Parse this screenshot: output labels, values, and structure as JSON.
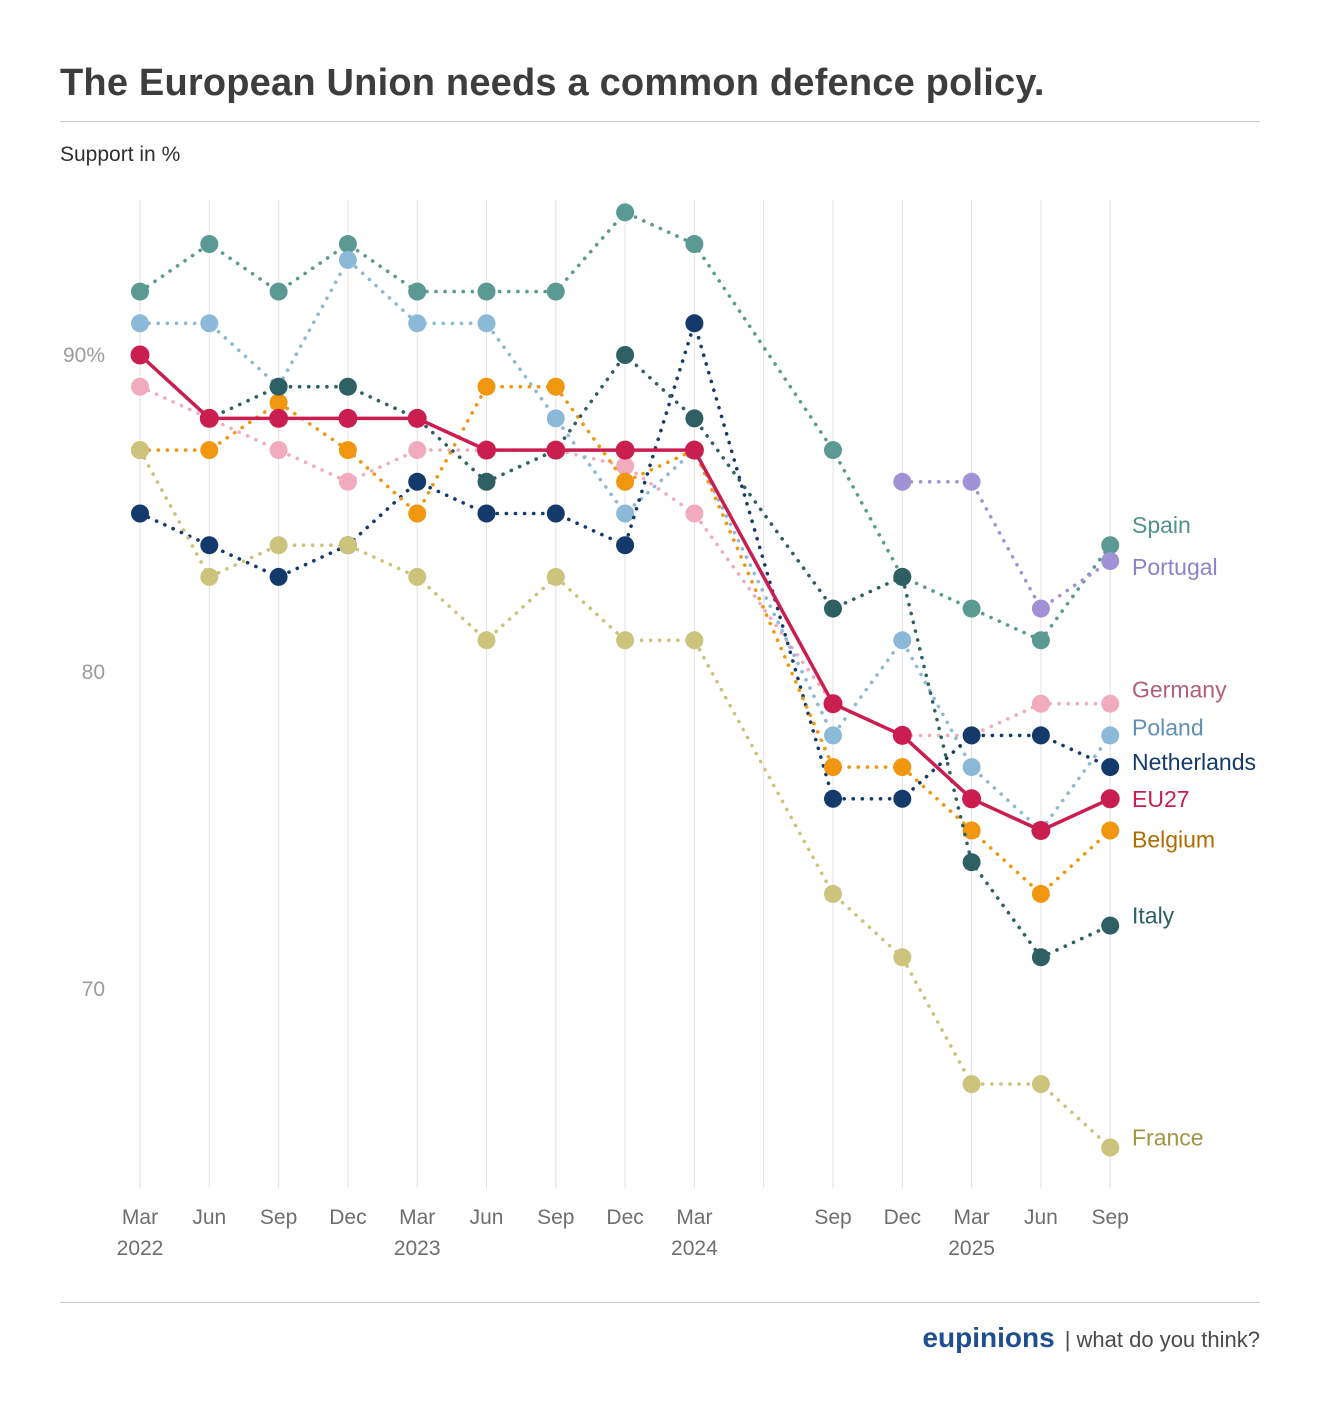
{
  "footer": {
    "brand": "eupinions",
    "tagline": "| what do you think?"
  },
  "chart_data": {
    "type": "line",
    "title": "The European Union needs a common defence policy.",
    "ylabel": "Support in %",
    "xlabel": "",
    "legend_position": "right",
    "grid": "vertical-only",
    "ylim": [
      63,
      96
    ],
    "y_ticks": [
      {
        "value": 90,
        "label": "90%"
      },
      {
        "value": 80,
        "label": "80"
      },
      {
        "value": 70,
        "label": "70"
      }
    ],
    "x_labels": [
      "Mar",
      "Jun",
      "Sep",
      "Dec",
      "Mar",
      "Jun",
      "Sep",
      "Dec",
      "Mar",
      "Sep",
      "Dec",
      "Mar",
      "Jun",
      "Sep"
    ],
    "x_years": [
      "2022",
      "",
      "",
      "",
      "2023",
      "",
      "",
      "",
      "2024",
      "",
      "",
      "2025",
      "",
      ""
    ],
    "x_offsets": [
      0,
      1,
      2,
      3,
      4,
      5,
      6,
      7,
      8,
      10,
      11,
      12,
      13,
      14
    ],
    "series": [
      {
        "name": "Spain",
        "color": "#5a9a93",
        "label_color": "#52918b",
        "style": "dotted",
        "values": [
          92,
          93.5,
          92,
          93.5,
          92,
          92,
          92,
          94.5,
          93.5,
          87,
          83,
          82,
          81,
          84
        ]
      },
      {
        "name": "Portugal",
        "color": "#a191d6",
        "label_color": "#8f80cb",
        "style": "dotted",
        "values": [
          null,
          null,
          null,
          null,
          null,
          null,
          null,
          null,
          null,
          null,
          86,
          86,
          82,
          83.5
        ]
      },
      {
        "name": "Germany",
        "color": "#f2abbe",
        "label_color": "#b2607a",
        "style": "dotted",
        "values": [
          89,
          88,
          87,
          86,
          87,
          87,
          87,
          86.5,
          85,
          79,
          78,
          78,
          79,
          79
        ]
      },
      {
        "name": "Poland",
        "color": "#8db9d8",
        "label_color": "#5f90b5",
        "style": "dotted",
        "values": [
          91,
          91,
          89,
          93,
          91,
          91,
          88,
          85,
          87,
          78,
          81,
          77,
          75,
          78
        ]
      },
      {
        "name": "Netherlands",
        "color": "#14396b",
        "label_color": "#14396b",
        "style": "dotted",
        "values": [
          85,
          84,
          83,
          84,
          86,
          85,
          85,
          84,
          91,
          76,
          76,
          78,
          78,
          77
        ]
      },
      {
        "name": "EU27",
        "color": "#c91e4f",
        "label_color": "#c91e4f",
        "style": "solid",
        "values": [
          90,
          88,
          88,
          88,
          88,
          87,
          87,
          87,
          87,
          79,
          78,
          76,
          75,
          76
        ]
      },
      {
        "name": "Belgium",
        "color": "#f0960f",
        "label_color": "#b06c00",
        "style": "dotted",
        "values": [
          87,
          87,
          88.5,
          87,
          85,
          89,
          89,
          86,
          87,
          77,
          77,
          75,
          73,
          75
        ]
      },
      {
        "name": "Italy",
        "color": "#2e5f63",
        "label_color": "#2e5f63",
        "style": "dotted",
        "values": [
          90,
          88,
          89,
          89,
          88,
          86,
          87,
          90,
          88,
          82,
          83,
          74,
          71,
          72
        ]
      },
      {
        "name": "France",
        "color": "#ccc37c",
        "label_color": "#a29546",
        "style": "dotted",
        "values": [
          87,
          83,
          84,
          84,
          83,
          81,
          83,
          81,
          81,
          73,
          71,
          67,
          67,
          65
        ]
      }
    ]
  }
}
